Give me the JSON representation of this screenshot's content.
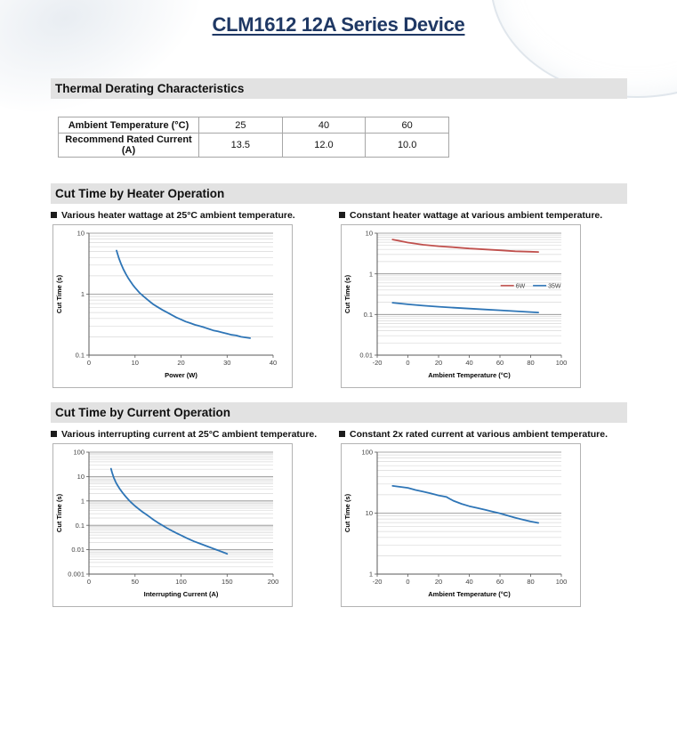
{
  "page": {
    "title": "CLM1612 12A Series Device"
  },
  "colors": {
    "title_navy": "#1f3864",
    "accent_blue": "#2e75b6",
    "accent_red": "#c0504d",
    "section_bar_gray": "#e2e2e2"
  },
  "thermal": {
    "heading": "Thermal Derating Characteristics",
    "table": {
      "rows": [
        {
          "label": "Ambient Temperature (°C)",
          "values": [
            "25",
            "40",
            "60"
          ]
        },
        {
          "label": "Recommend Rated Current (A)",
          "values": [
            "13.5",
            "12.0",
            "10.0"
          ]
        }
      ]
    }
  },
  "heater_section": {
    "heading": "Cut Time by Heater Operation",
    "left_caption": "Various heater wattage at 25°C ambient temperature.",
    "right_caption": "Constant heater wattage at various ambient temperature."
  },
  "current_section": {
    "heading": "Cut Time by Current Operation",
    "left_caption": "Various interrupting current at 25°C ambient temperature.",
    "right_caption": "Constant 2x rated current at various ambient temperature."
  },
  "chart_data": [
    {
      "type": "line",
      "title": "Various heater wattage at 25°C ambient temperature",
      "xlabel": "Power (W)",
      "ylabel": "Cut Time (s)",
      "xlim": [
        0,
        40
      ],
      "xticks": [
        0,
        10,
        20,
        30,
        40
      ],
      "yscale": "log",
      "ylog_exp": [
        -1,
        1
      ],
      "ylim": [
        0.1,
        10
      ],
      "grid": "horizontal-log",
      "legend": null,
      "series": [
        {
          "name": "",
          "color": "#2e75b6",
          "points": [
            [
              6,
              5.2
            ],
            [
              6.5,
              3.9
            ],
            [
              7,
              3.1
            ],
            [
              7.5,
              2.55
            ],
            [
              8,
              2.15
            ],
            [
              8.5,
              1.85
            ],
            [
              9,
              1.62
            ],
            [
              9.5,
              1.43
            ],
            [
              10,
              1.28
            ],
            [
              11,
              1.05
            ],
            [
              12,
              0.9
            ],
            [
              13,
              0.78
            ],
            [
              14,
              0.68
            ],
            [
              15,
              0.61
            ],
            [
              16,
              0.55
            ],
            [
              17,
              0.5
            ],
            [
              18,
              0.455
            ],
            [
              19,
              0.415
            ],
            [
              20,
              0.385
            ],
            [
              21,
              0.355
            ],
            [
              22,
              0.335
            ],
            [
              23,
              0.315
            ],
            [
              24,
              0.3
            ],
            [
              25,
              0.285
            ],
            [
              26,
              0.27
            ],
            [
              27,
              0.255
            ],
            [
              28,
              0.245
            ],
            [
              29,
              0.235
            ],
            [
              30,
              0.225
            ],
            [
              31,
              0.215
            ],
            [
              32,
              0.21
            ],
            [
              33,
              0.2
            ],
            [
              34,
              0.195
            ],
            [
              35,
              0.19
            ]
          ]
        }
      ]
    },
    {
      "type": "line",
      "title": "Constant heater wattage at various ambient temperature",
      "xlabel": "Ambient Temperature (°C)",
      "ylabel": "Cut Time (s)",
      "xlim": [
        -20,
        100
      ],
      "xticks": [
        -20,
        0,
        20,
        40,
        60,
        80,
        100
      ],
      "yscale": "log",
      "ylog_exp": [
        -2,
        1
      ],
      "ylim": [
        0.01,
        10
      ],
      "grid": "horizontal-log",
      "legend": {
        "fx": 0.67,
        "fy": 0.43
      },
      "series": [
        {
          "name": "6W",
          "color": "#c0504d",
          "points": [
            [
              -10,
              7.0
            ],
            [
              0,
              5.9
            ],
            [
              10,
              5.2
            ],
            [
              20,
              4.8
            ],
            [
              30,
              4.5
            ],
            [
              40,
              4.2
            ],
            [
              50,
              4.0
            ],
            [
              60,
              3.8
            ],
            [
              70,
              3.6
            ],
            [
              80,
              3.5
            ],
            [
              85,
              3.45
            ]
          ]
        },
        {
          "name": "35W",
          "color": "#2e75b6",
          "points": [
            [
              -10,
              0.195
            ],
            [
              0,
              0.178
            ],
            [
              10,
              0.165
            ],
            [
              20,
              0.155
            ],
            [
              30,
              0.147
            ],
            [
              40,
              0.14
            ],
            [
              50,
              0.133
            ],
            [
              60,
              0.127
            ],
            [
              70,
              0.121
            ],
            [
              80,
              0.115
            ],
            [
              85,
              0.112
            ]
          ]
        }
      ]
    },
    {
      "type": "line",
      "title": "Various interrupting current at 25°C ambient temperature",
      "xlabel": "Interrupting Current (A)",
      "ylabel": "Cut Time (s)",
      "xlim": [
        0,
        200
      ],
      "xticks": [
        0,
        50,
        100,
        150,
        200
      ],
      "yscale": "log",
      "ylog_exp": [
        -3,
        2
      ],
      "ylim": [
        0.001,
        100
      ],
      "grid": "horizontal-log",
      "legend": null,
      "series": [
        {
          "name": "",
          "color": "#2e75b6",
          "points": [
            [
              24,
              21
            ],
            [
              25,
              15
            ],
            [
              26,
              11.5
            ],
            [
              27,
              9
            ],
            [
              28,
              7.3
            ],
            [
              29,
              6
            ],
            [
              30,
              5.1
            ],
            [
              32,
              3.8
            ],
            [
              34,
              2.9
            ],
            [
              36,
              2.3
            ],
            [
              38,
              1.85
            ],
            [
              40,
              1.5
            ],
            [
              43,
              1.12
            ],
            [
              46,
              0.85
            ],
            [
              50,
              0.62
            ],
            [
              54,
              0.47
            ],
            [
              58,
              0.36
            ],
            [
              62,
              0.28
            ],
            [
              66,
              0.22
            ],
            [
              70,
              0.17
            ],
            [
              75,
              0.128
            ],
            [
              80,
              0.098
            ],
            [
              85,
              0.076
            ],
            [
              90,
              0.06
            ],
            [
              95,
              0.048
            ],
            [
              100,
              0.039
            ],
            [
              107,
              0.029
            ],
            [
              114,
              0.022
            ],
            [
              121,
              0.0175
            ],
            [
              128,
              0.014
            ],
            [
              135,
              0.0112
            ],
            [
              142,
              0.0089
            ],
            [
              150,
              0.0068
            ]
          ]
        }
      ]
    },
    {
      "type": "line",
      "title": "Constant 2x rated current at various ambient temperature",
      "xlabel": "Ambient Temperature (°C)",
      "ylabel": "Cut Time (s)",
      "xlim": [
        -20,
        100
      ],
      "xticks": [
        -20,
        0,
        20,
        40,
        60,
        80,
        100
      ],
      "yscale": "log",
      "ylog_exp": [
        0,
        2
      ],
      "ylim": [
        1,
        100
      ],
      "grid": "horizontal-log",
      "legend": null,
      "series": [
        {
          "name": "",
          "color": "#2e75b6",
          "points": [
            [
              -10,
              28
            ],
            [
              0,
              26
            ],
            [
              5,
              24
            ],
            [
              10,
              22.5
            ],
            [
              15,
              21
            ],
            [
              20,
              19.5
            ],
            [
              25,
              18.5
            ],
            [
              28,
              16.8
            ],
            [
              30,
              15.8
            ],
            [
              35,
              14.2
            ],
            [
              40,
              13
            ],
            [
              45,
              12.2
            ],
            [
              50,
              11.4
            ],
            [
              55,
              10.6
            ],
            [
              60,
              9.9
            ],
            [
              65,
              9.1
            ],
            [
              70,
              8.4
            ],
            [
              75,
              7.8
            ],
            [
              80,
              7.3
            ],
            [
              85,
              6.9
            ]
          ]
        }
      ]
    }
  ]
}
